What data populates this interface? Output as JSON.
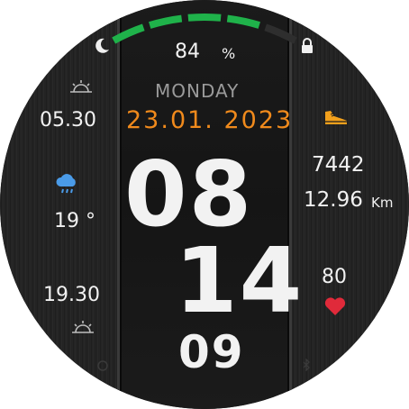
{
  "battery": {
    "percent": 84,
    "value_text": "84",
    "unit": "%",
    "level_fraction": 0.84,
    "color": "#1fb24a"
  },
  "date": {
    "weekday": "MONDAY",
    "date_text": "23.01. 2023",
    "color": "#f08a1c"
  },
  "time": {
    "hours": "08",
    "minutes": "14",
    "seconds": "09"
  },
  "sun": {
    "sunrise": "05.30",
    "sunset": "19.30"
  },
  "weather": {
    "temperature": "19 °"
  },
  "activity": {
    "steps": "7442",
    "distance": "12.96",
    "distance_unit": "Km"
  },
  "health": {
    "heart_rate": "80",
    "heart_color": "#e02a3a"
  },
  "icons": {
    "top_left": "moon-icon",
    "top_right": "lock-icon",
    "sunrise": "sunrise-icon",
    "weather": "cloud-rain-icon",
    "sunset": "sunset-icon",
    "steps": "shoe-icon",
    "heart": "heart-icon",
    "bottom_left": "alarm-icon",
    "bottom_right": "bluetooth-icon"
  }
}
